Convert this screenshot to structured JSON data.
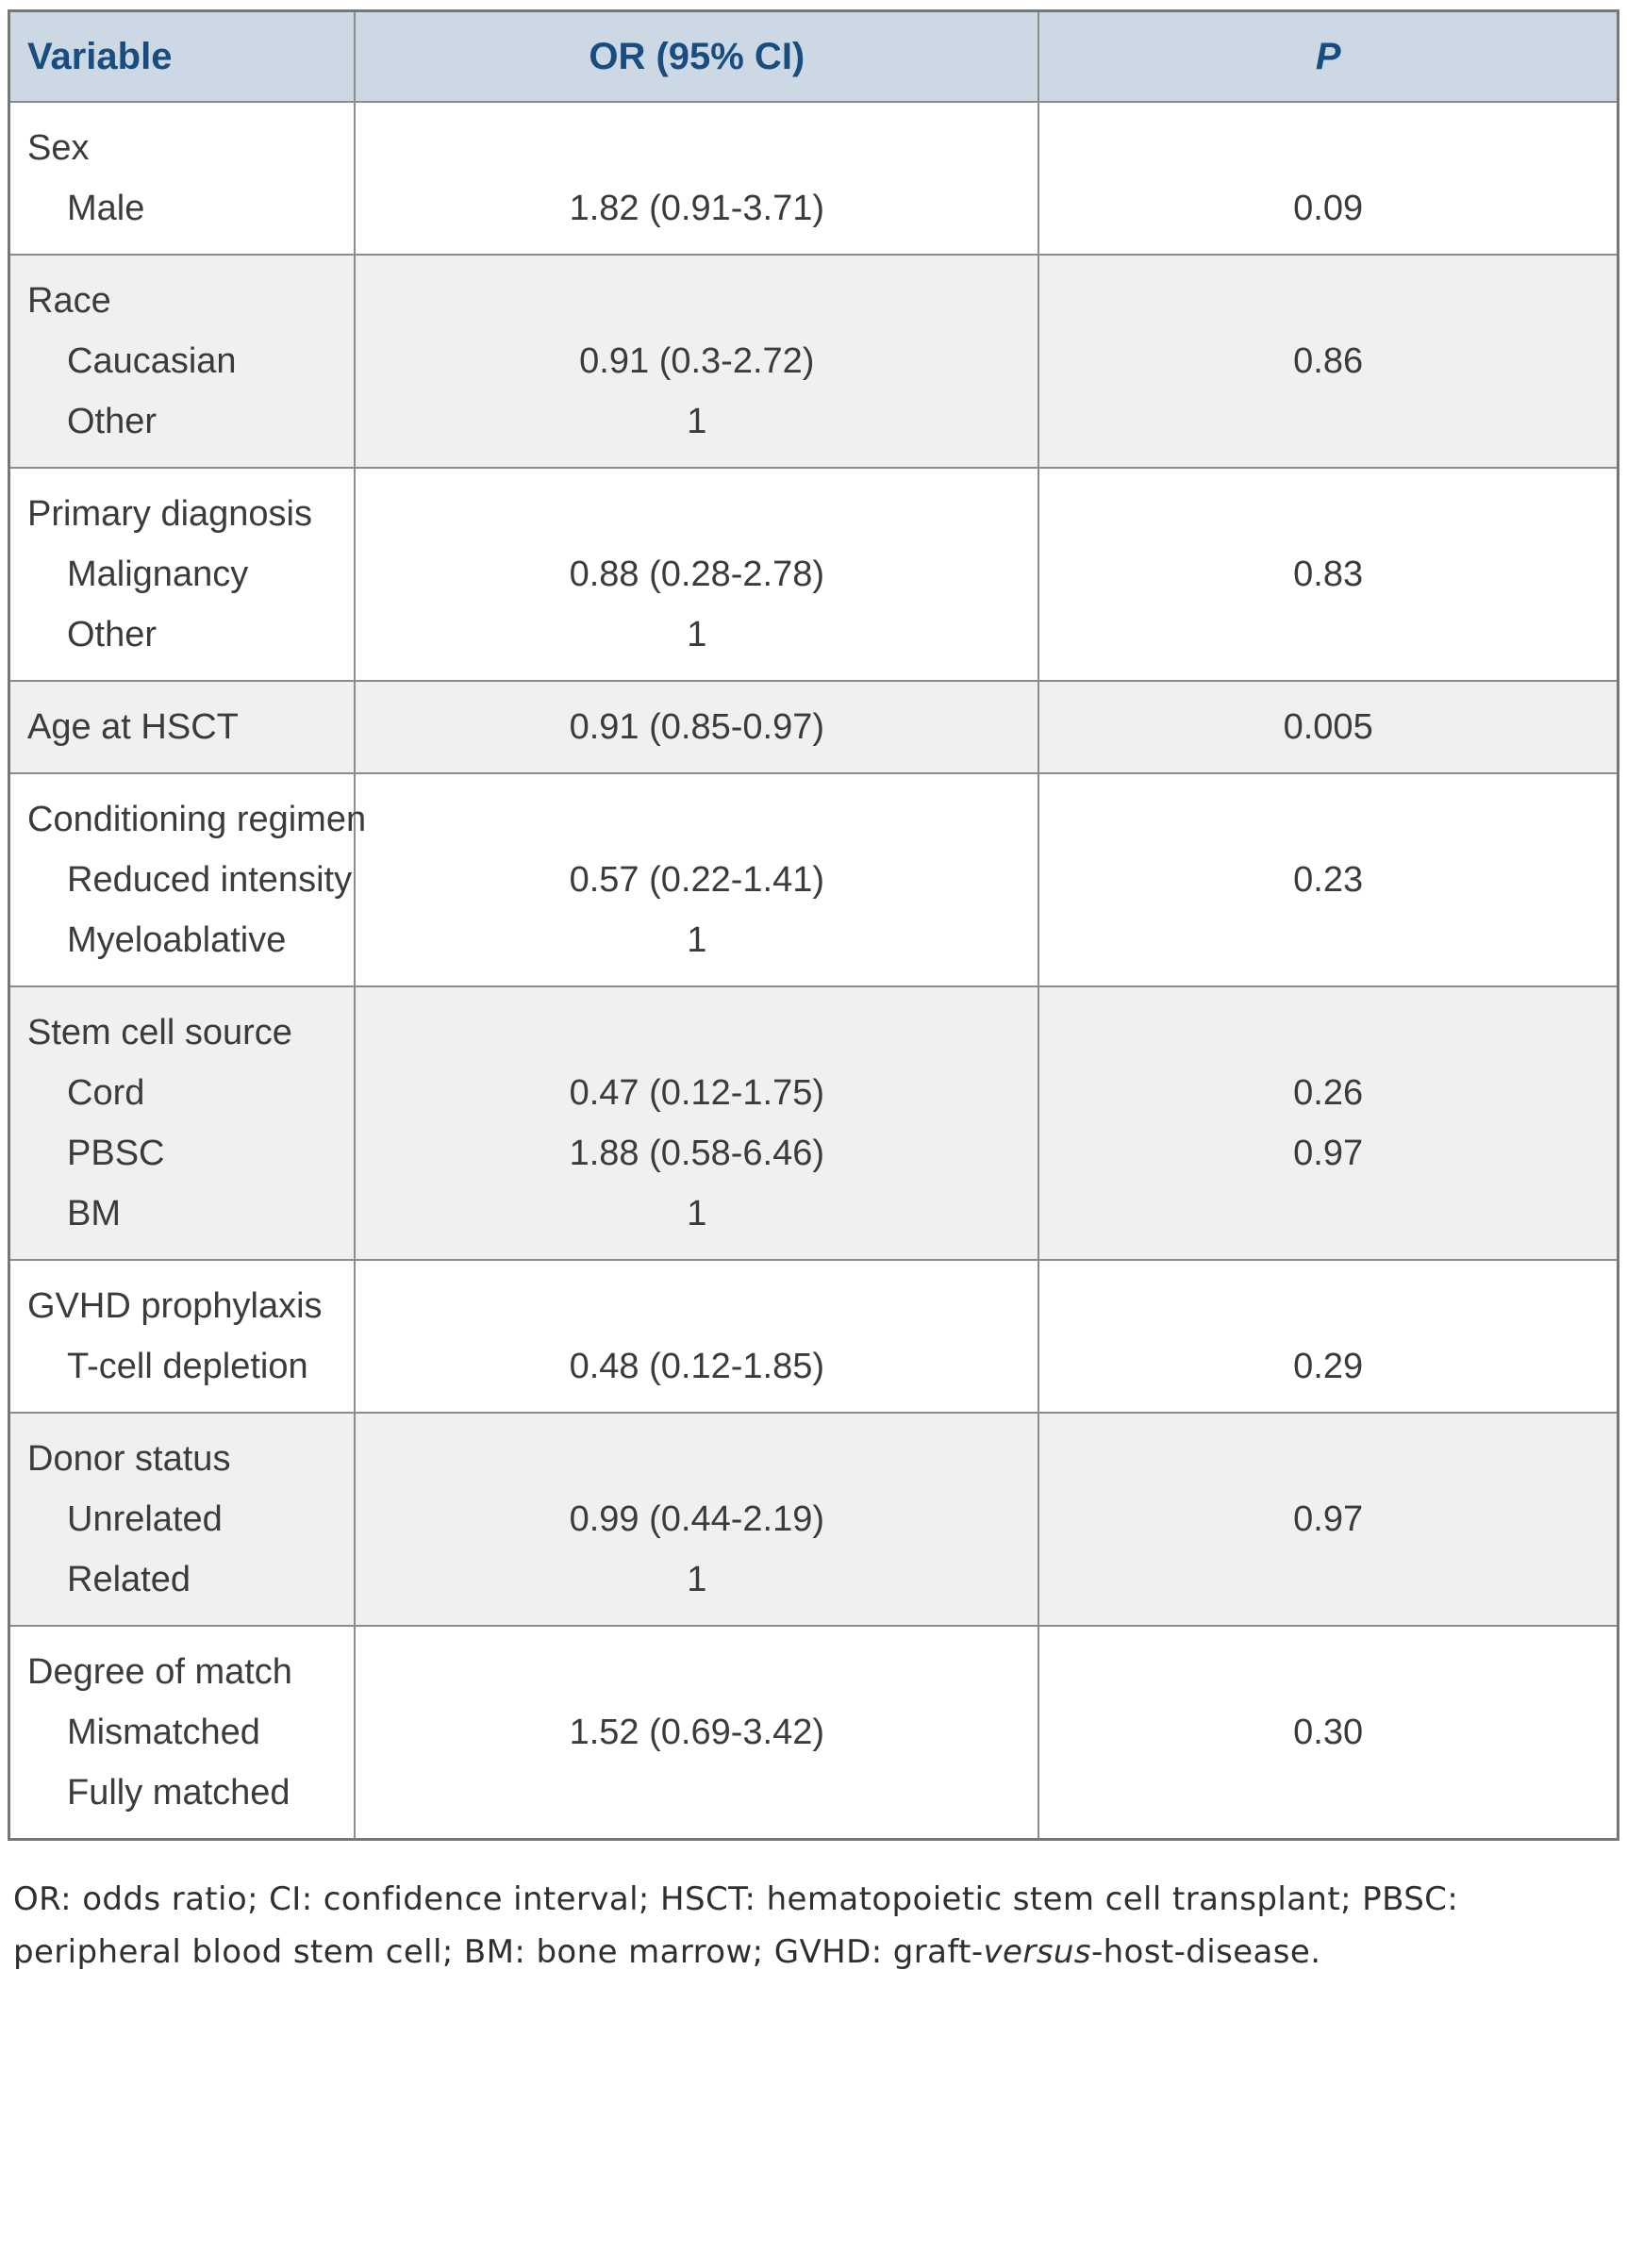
{
  "table": {
    "headers": {
      "variable": "Variable",
      "or": "OR (95% CI)",
      "p": "P"
    },
    "groups": [
      {
        "label": "Sex",
        "items": [
          {
            "name": "Male",
            "or": "1.82 (0.91-3.71)",
            "p": "0.09"
          }
        ]
      },
      {
        "label": "Race",
        "items": [
          {
            "name": "Caucasian",
            "or": "0.91 (0.3-2.72)",
            "p": "0.86"
          },
          {
            "name": "Other",
            "or": "1",
            "p": ""
          }
        ]
      },
      {
        "label": "Primary diagnosis",
        "items": [
          {
            "name": "Malignancy",
            "or": "0.88 (0.28-2.78)",
            "p": "0.83"
          },
          {
            "name": "Other",
            "or": "1",
            "p": ""
          }
        ]
      },
      {
        "label": "Age at HSCT",
        "or": "0.91 (0.85-0.97)",
        "p": "0.005"
      },
      {
        "label": "Conditioning regimen",
        "items": [
          {
            "name": "Reduced intensity",
            "or": "0.57 (0.22-1.41)",
            "p": "0.23"
          },
          {
            "name": "Myeloablative",
            "or": "1",
            "p": ""
          }
        ]
      },
      {
        "label": "Stem cell source",
        "items": [
          {
            "name": "Cord",
            "or": "0.47 (0.12-1.75)",
            "p": "0.26"
          },
          {
            "name": "PBSC",
            "or": "1.88 (0.58-6.46)",
            "p": "0.97"
          },
          {
            "name": "BM",
            "or": "1",
            "p": ""
          }
        ]
      },
      {
        "label": "GVHD prophylaxis",
        "items": [
          {
            "name": "T-cell depletion",
            "or": "0.48 (0.12-1.85)",
            "p": "0.29"
          }
        ]
      },
      {
        "label": "Donor status",
        "items": [
          {
            "name": "Unrelated",
            "or": "0.99 (0.44-2.19)",
            "p": "0.97"
          },
          {
            "name": "Related",
            "or": "1",
            "p": ""
          }
        ]
      },
      {
        "label": "Degree of match",
        "items": [
          {
            "name": "Mismatched",
            "or": "1.52 (0.69-3.42)",
            "p": "0.30"
          },
          {
            "name": "Fully matched",
            "or": "",
            "p": ""
          }
        ]
      }
    ]
  },
  "footnote": {
    "part1": "OR: odds ratio; CI: confidence interval; HSCT: hematopoietic stem cell transplant;  PBSC: peripheral blood stem cell; BM: bone marrow; GVHD: graft-",
    "italic": "versus",
    "part2": "-host-disease."
  },
  "colors": {
    "header_bg": "#ccd9e5",
    "header_text": "#1a4d7f",
    "alt_row_bg": "#f0f0f0",
    "border": "#8c8c8c"
  }
}
